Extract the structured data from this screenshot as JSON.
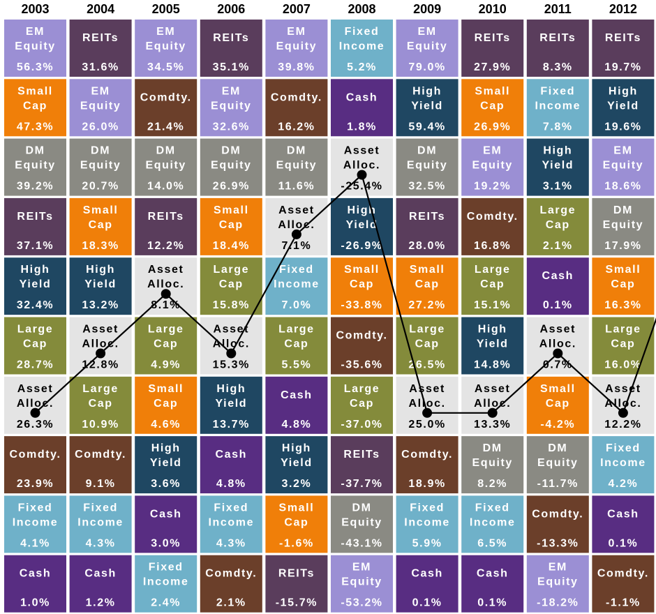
{
  "chart_data": {
    "type": "table",
    "title": "",
    "years": [
      "2003",
      "2004",
      "2005",
      "2006",
      "2007",
      "2008",
      "2009",
      "2010",
      "2011",
      "2012"
    ],
    "asset_classes": {
      "em": {
        "label": [
          "EM",
          "Equity"
        ],
        "color": "#9b8fd4",
        "text": "#ffffff"
      },
      "reit": {
        "label": [
          "REITs"
        ],
        "color": "#5a3d5c",
        "text": "#ffffff"
      },
      "fi": {
        "label": [
          "Fixed",
          "Income"
        ],
        "color": "#6fb1c9",
        "text": "#ffffff"
      },
      "sc": {
        "label": [
          "Small",
          "Cap"
        ],
        "color": "#f07f09",
        "text": "#ffffff"
      },
      "com": {
        "label": [
          "Comdty."
        ],
        "color": "#6b3f2a",
        "text": "#ffffff"
      },
      "cash": {
        "label": [
          "Cash"
        ],
        "color": "#582d82",
        "text": "#ffffff"
      },
      "hy": {
        "label": [
          "High",
          "Yield"
        ],
        "color": "#1f4762",
        "text": "#ffffff"
      },
      "dm": {
        "label": [
          "DM",
          "Equity"
        ],
        "color": "#8a8a83",
        "text": "#ffffff"
      },
      "aa": {
        "label": [
          "Asset",
          "Alloc."
        ],
        "color": "#e4e4e4",
        "text": "#000000"
      },
      "lc": {
        "label": [
          "Large",
          "Cap"
        ],
        "color": "#848b3b",
        "text": "#ffffff"
      }
    },
    "columns": [
      [
        [
          "em",
          "56.3%"
        ],
        [
          "sc",
          "47.3%"
        ],
        [
          "dm",
          "39.2%"
        ],
        [
          "reit",
          "37.1%"
        ],
        [
          "hy",
          "32.4%"
        ],
        [
          "lc",
          "28.7%"
        ],
        [
          "aa",
          "26.3%"
        ],
        [
          "com",
          "23.9%"
        ],
        [
          "fi",
          "4.1%"
        ],
        [
          "cash",
          "1.0%"
        ]
      ],
      [
        [
          "reit",
          "31.6%"
        ],
        [
          "em",
          "26.0%"
        ],
        [
          "dm",
          "20.7%"
        ],
        [
          "sc",
          "18.3%"
        ],
        [
          "hy",
          "13.2%"
        ],
        [
          "aa",
          "12.8%"
        ],
        [
          "lc",
          "10.9%"
        ],
        [
          "com",
          "9.1%"
        ],
        [
          "fi",
          "4.3%"
        ],
        [
          "cash",
          "1.2%"
        ]
      ],
      [
        [
          "em",
          "34.5%"
        ],
        [
          "com",
          "21.4%"
        ],
        [
          "dm",
          "14.0%"
        ],
        [
          "reit",
          "12.2%"
        ],
        [
          "aa",
          "8.1%"
        ],
        [
          "lc",
          "4.9%"
        ],
        [
          "sc",
          "4.6%"
        ],
        [
          "hy",
          "3.6%"
        ],
        [
          "cash",
          "3.0%"
        ],
        [
          "fi",
          "2.4%"
        ]
      ],
      [
        [
          "reit",
          "35.1%"
        ],
        [
          "em",
          "32.6%"
        ],
        [
          "dm",
          "26.9%"
        ],
        [
          "sc",
          "18.4%"
        ],
        [
          "lc",
          "15.8%"
        ],
        [
          "aa",
          "15.3%"
        ],
        [
          "hy",
          "13.7%"
        ],
        [
          "cash",
          "4.8%"
        ],
        [
          "fi",
          "4.3%"
        ],
        [
          "com",
          "2.1%"
        ]
      ],
      [
        [
          "em",
          "39.8%"
        ],
        [
          "com",
          "16.2%"
        ],
        [
          "dm",
          "11.6%"
        ],
        [
          "aa",
          "7.1%"
        ],
        [
          "fi",
          "7.0%"
        ],
        [
          "lc",
          "5.5%"
        ],
        [
          "cash",
          "4.8%"
        ],
        [
          "hy",
          "3.2%"
        ],
        [
          "sc",
          "-1.6%"
        ],
        [
          "reit",
          "-15.7%"
        ]
      ],
      [
        [
          "fi",
          "5.2%"
        ],
        [
          "cash",
          "1.8%"
        ],
        [
          "aa",
          "-25.4%"
        ],
        [
          "hy",
          "-26.9%"
        ],
        [
          "sc",
          "-33.8%"
        ],
        [
          "com",
          "-35.6%"
        ],
        [
          "lc",
          "-37.0%"
        ],
        [
          "reit",
          "-37.7%"
        ],
        [
          "dm",
          "-43.1%"
        ],
        [
          "em",
          "-53.2%"
        ]
      ],
      [
        [
          "em",
          "79.0%"
        ],
        [
          "hy",
          "59.4%"
        ],
        [
          "dm",
          "32.5%"
        ],
        [
          "reit",
          "28.0%"
        ],
        [
          "sc",
          "27.2%"
        ],
        [
          "lc",
          "26.5%"
        ],
        [
          "aa",
          "25.0%"
        ],
        [
          "com",
          "18.9%"
        ],
        [
          "fi",
          "5.9%"
        ],
        [
          "cash",
          "0.1%"
        ]
      ],
      [
        [
          "reit",
          "27.9%"
        ],
        [
          "sc",
          "26.9%"
        ],
        [
          "em",
          "19.2%"
        ],
        [
          "com",
          "16.8%"
        ],
        [
          "lc",
          "15.1%"
        ],
        [
          "hy",
          "14.8%"
        ],
        [
          "aa",
          "13.3%"
        ],
        [
          "dm",
          "8.2%"
        ],
        [
          "fi",
          "6.5%"
        ],
        [
          "cash",
          "0.1%"
        ]
      ],
      [
        [
          "reit",
          "8.3%"
        ],
        [
          "fi",
          "7.8%"
        ],
        [
          "hy",
          "3.1%"
        ],
        [
          "lc",
          "2.1%"
        ],
        [
          "cash",
          "0.1%"
        ],
        [
          "aa",
          "0.7%"
        ],
        [
          "sc",
          "-4.2%"
        ],
        [
          "dm",
          "-11.7%"
        ],
        [
          "com",
          "-13.3%"
        ],
        [
          "em",
          "-18.2%"
        ]
      ],
      [
        [
          "reit",
          "19.7%"
        ],
        [
          "hy",
          "19.6%"
        ],
        [
          "em",
          "18.6%"
        ],
        [
          "dm",
          "17.9%"
        ],
        [
          "sc",
          "16.3%"
        ],
        [
          "lc",
          "16.0%"
        ],
        [
          "aa",
          "12.2%"
        ],
        [
          "fi",
          "4.2%"
        ],
        [
          "cash",
          "0.1%"
        ],
        [
          "com",
          "-1.1%"
        ]
      ]
    ],
    "asset_allocation_path": {
      "ranks": [
        7,
        6,
        5,
        6,
        4,
        3,
        7,
        7,
        6,
        7
      ],
      "continues_beyond_right_edge": true
    }
  }
}
